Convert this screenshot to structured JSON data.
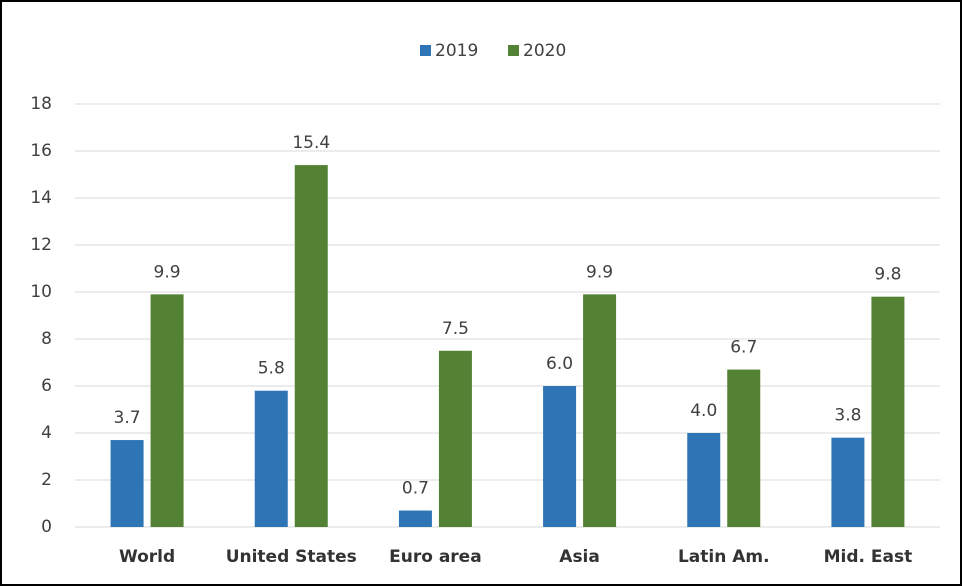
{
  "chart_data": {
    "type": "bar",
    "categories": [
      "World",
      "United States",
      "Euro area",
      "Asia",
      "Latin Am.",
      "Mid. East"
    ],
    "series": [
      {
        "name": "2019",
        "color": "#2e75b6",
        "values": [
          3.7,
          5.8,
          0.7,
          6.0,
          4.0,
          3.8
        ],
        "value_labels": [
          "3.7",
          "5.8",
          "0.7",
          "6.0",
          "4.0",
          "3.8"
        ]
      },
      {
        "name": "2020",
        "color": "#548235",
        "values": [
          9.9,
          15.4,
          7.5,
          9.9,
          6.7,
          9.8
        ],
        "value_labels": [
          "9.9",
          "15.4",
          "7.5",
          "9.9",
          "6.7",
          "9.8"
        ]
      }
    ],
    "ylim": [
      0,
      18
    ],
    "yticks": [
      0,
      2,
      4,
      6,
      8,
      10,
      12,
      14,
      16,
      18
    ],
    "grid": true,
    "legend": "top"
  }
}
